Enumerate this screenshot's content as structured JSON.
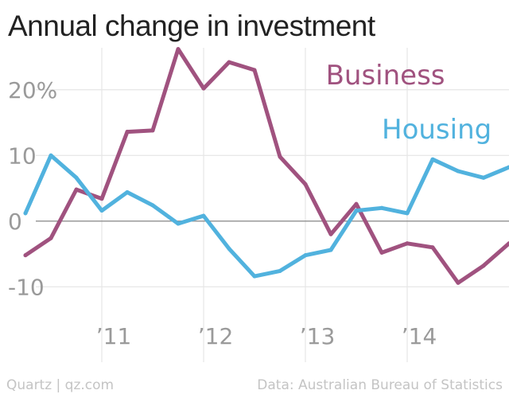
{
  "header": {
    "title": "Annual change in investment"
  },
  "footer": {
    "credit": "Quartz | qz.com",
    "source": "Data: Australian Bureau of Statistics"
  },
  "colors": {
    "business": "#a0527f",
    "housing": "#51b2de",
    "grid": "#e6e6e6",
    "zero_line": "#999999",
    "text_muted": "#9a9a9a"
  },
  "chart_data": {
    "type": "line",
    "title": "Annual change in investment",
    "xlabel": "",
    "ylabel": "",
    "grid": true,
    "xlim": [
      2010.0,
      2015.0
    ],
    "ylim": [
      -13,
      27
    ],
    "y_ticks": [
      {
        "value": 20,
        "label": "20%"
      },
      {
        "value": 10,
        "label": "10"
      },
      {
        "value": 0,
        "label": "0"
      },
      {
        "value": -10,
        "label": "-10"
      }
    ],
    "x_ticks": [
      {
        "value": 2011,
        "label": "’11"
      },
      {
        "value": 2012,
        "label": "’12"
      },
      {
        "value": 2013,
        "label": "’13"
      },
      {
        "value": 2014,
        "label": "’14"
      }
    ],
    "x": [
      2010.25,
      2010.5,
      2010.75,
      2011.0,
      2011.25,
      2011.5,
      2011.75,
      2012.0,
      2012.25,
      2012.5,
      2012.75,
      2013.0,
      2013.25,
      2013.5,
      2013.75,
      2014.0,
      2014.25,
      2014.5,
      2014.75,
      2015.0
    ],
    "series": [
      {
        "name": "Business",
        "color": "#a0527f",
        "label_anchor": {
          "x": 2013.2,
          "y": 20.8
        },
        "values": [
          -5.2,
          -2.6,
          4.8,
          3.4,
          13.6,
          13.8,
          26.2,
          20.2,
          24.2,
          23.0,
          9.8,
          5.6,
          -2.0,
          2.6,
          -4.8,
          -3.4,
          -4.0,
          -9.4,
          -6.8,
          -3.4
        ]
      },
      {
        "name": "Housing",
        "color": "#51b2de",
        "label_anchor": {
          "x": 2013.75,
          "y": 12.6
        },
        "values": [
          1.2,
          10.0,
          6.6,
          1.6,
          4.4,
          2.4,
          -0.4,
          0.8,
          -4.2,
          -8.4,
          -7.6,
          -5.2,
          -4.4,
          1.6,
          2.0,
          1.2,
          9.4,
          7.6,
          6.6,
          8.2
        ]
      }
    ]
  }
}
